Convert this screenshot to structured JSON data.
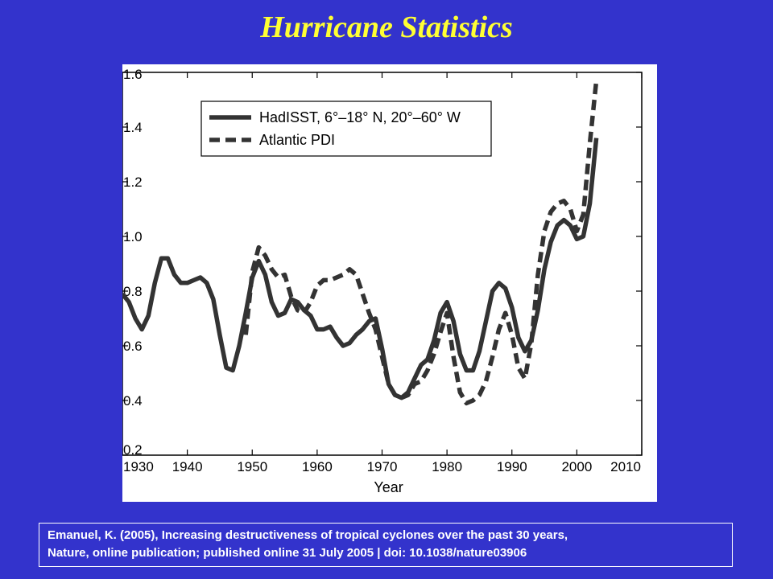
{
  "slide": {
    "title": "Hurricane Statistics",
    "citation_line1": "Emanuel, K. (2005), Increasing destructiveness of tropical cyclones over the past 30 years,",
    "citation_line2": "Nature, online publication; published online 31 July 2005 | doi: 10.1038/nature03906"
  },
  "colors": {
    "background": "#3333cc",
    "title": "#ffff33",
    "series": "#333333"
  },
  "chart_data": {
    "type": "line",
    "title": "",
    "xlabel": "Year",
    "ylabel": "",
    "xlim": [
      1930,
      2010
    ],
    "ylim": [
      0.2,
      1.6
    ],
    "xticks": [
      "1930",
      "1940",
      "1950",
      "1960",
      "1970",
      "1980",
      "1990",
      "2000",
      "2010"
    ],
    "yticks": [
      "0.2",
      "0.4",
      "0.6",
      "0.8",
      "1.0",
      "1.2",
      "1.4",
      "1.6"
    ],
    "legend_position": "top-left",
    "grid": false,
    "series": [
      {
        "name": "HadISST, 6°–18° N, 20°–60° W",
        "style": "solid",
        "x": [
          1930,
          1931,
          1932,
          1933,
          1934,
          1935,
          1936,
          1937,
          1938,
          1939,
          1940,
          1941,
          1942,
          1943,
          1944,
          1945,
          1946,
          1947,
          1948,
          1949,
          1950,
          1951,
          1952,
          1953,
          1954,
          1955,
          1956,
          1957,
          1958,
          1959,
          1960,
          1961,
          1962,
          1963,
          1964,
          1965,
          1966,
          1967,
          1968,
          1969,
          1970,
          1971,
          1972,
          1973,
          1974,
          1975,
          1976,
          1977,
          1978,
          1979,
          1980,
          1981,
          1982,
          1983,
          1984,
          1985,
          1986,
          1987,
          1988,
          1989,
          1990,
          1991,
          1992,
          1993,
          1994,
          1995,
          1996,
          1997,
          1998,
          1999,
          2000,
          2001,
          2002,
          2003
        ],
        "values": [
          0.79,
          0.76,
          0.7,
          0.66,
          0.71,
          0.83,
          0.92,
          0.92,
          0.86,
          0.83,
          0.83,
          0.84,
          0.85,
          0.83,
          0.77,
          0.64,
          0.52,
          0.51,
          0.6,
          0.72,
          0.85,
          0.91,
          0.86,
          0.76,
          0.71,
          0.72,
          0.77,
          0.76,
          0.73,
          0.71,
          0.66,
          0.66,
          0.67,
          0.63,
          0.6,
          0.61,
          0.64,
          0.66,
          0.69,
          0.7,
          0.59,
          0.46,
          0.42,
          0.41,
          0.43,
          0.48,
          0.53,
          0.55,
          0.62,
          0.72,
          0.76,
          0.69,
          0.57,
          0.51,
          0.51,
          0.58,
          0.69,
          0.8,
          0.83,
          0.81,
          0.74,
          0.63,
          0.58,
          0.62,
          0.73,
          0.88,
          0.98,
          1.04,
          1.06,
          1.04,
          0.99,
          1.0,
          1.12,
          1.36
        ]
      },
      {
        "name": "Atlantic PDI",
        "style": "dashed",
        "x": [
          1949,
          1950,
          1951,
          1952,
          1953,
          1954,
          1955,
          1956,
          1957,
          1958,
          1959,
          1960,
          1961,
          1962,
          1963,
          1964,
          1965,
          1966,
          1967,
          1968,
          1969,
          1970,
          1971,
          1972,
          1973,
          1974,
          1975,
          1976,
          1977,
          1978,
          1979,
          1980,
          1981,
          1982,
          1983,
          1984,
          1985,
          1986,
          1987,
          1988,
          1989,
          1990,
          1991,
          1992,
          1993,
          1994,
          1995,
          1996,
          1997,
          1998,
          1999,
          2000,
          2001,
          2002,
          2003
        ],
        "values": [
          0.64,
          0.87,
          0.96,
          0.93,
          0.88,
          0.85,
          0.86,
          0.78,
          0.73,
          0.72,
          0.76,
          0.82,
          0.84,
          0.84,
          0.85,
          0.86,
          0.88,
          0.86,
          0.79,
          0.72,
          0.66,
          0.56,
          0.46,
          0.42,
          0.41,
          0.42,
          0.46,
          0.47,
          0.51,
          0.57,
          0.65,
          0.72,
          0.56,
          0.43,
          0.39,
          0.4,
          0.42,
          0.47,
          0.56,
          0.66,
          0.72,
          0.64,
          0.52,
          0.48,
          0.61,
          0.86,
          1.02,
          1.09,
          1.12,
          1.13,
          1.1,
          1.02,
          1.08,
          1.34,
          1.57
        ]
      }
    ]
  }
}
